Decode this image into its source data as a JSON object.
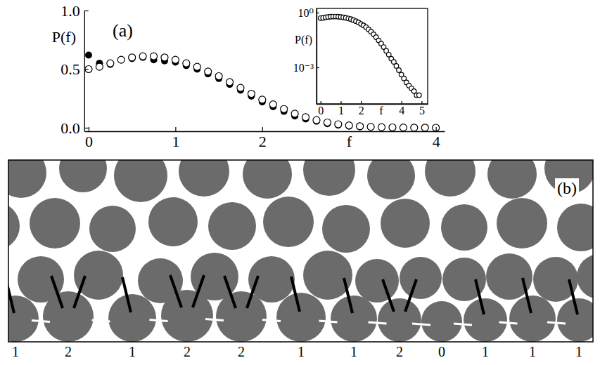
{
  "chart_data": [
    {
      "type": "scatter",
      "title": "(a)",
      "xlabel": "f",
      "ylabel": "P(f)",
      "x": [
        0,
        0.125,
        0.25,
        0.375,
        0.5,
        0.625,
        0.75,
        0.875,
        1,
        1.125,
        1.25,
        1.375,
        1.5,
        1.625,
        1.75,
        1.875,
        2,
        2.125,
        2.25,
        2.375,
        2.5,
        2.625,
        2.75,
        2.875,
        3,
        3.125,
        3.25,
        3.375,
        3.5,
        3.625,
        3.75,
        3.875,
        4
      ],
      "series": [
        {
          "marker": "filled-circle",
          "color": "#000000",
          "values": [
            0.62,
            0.55,
            0.54,
            0.58,
            0.59,
            0.6,
            0.58,
            0.57,
            0.56,
            0.53,
            0.5,
            0.46,
            0.42,
            0.37,
            0.32,
            0.27,
            0.22,
            0.18,
            0.14,
            0.1,
            0.075,
            0.055,
            0.035,
            0.022,
            0.013,
            0.008,
            0.005,
            0.003,
            0.002,
            0.001,
            0.001,
            0,
            0
          ]
        },
        {
          "marker": "open-circle",
          "color": "#000000",
          "values": [
            0.5,
            0.52,
            0.55,
            0.58,
            0.6,
            0.61,
            0.61,
            0.6,
            0.58,
            0.55,
            0.52,
            0.48,
            0.44,
            0.39,
            0.34,
            0.29,
            0.24,
            0.2,
            0.16,
            0.12,
            0.09,
            0.065,
            0.045,
            0.03,
            0.02,
            0.013,
            0.008,
            0.005,
            0.003,
            0.002,
            0.001,
            0.001,
            0
          ]
        }
      ],
      "xlim": [
        -0.05,
        4.1
      ],
      "ylim": [
        -0.03,
        1.0
      ],
      "xticks": [
        0,
        1,
        2,
        4
      ],
      "yticks": [
        {
          "value": 0,
          "label": "0.0"
        },
        {
          "value": 0.5,
          "label": "0.5"
        },
        {
          "value": 1,
          "label": "1.0"
        }
      ],
      "grid": false
    },
    {
      "type": "scatter",
      "xlabel": "f",
      "ylabel": "P(f)",
      "log": "y",
      "x": [
        0,
        0.125,
        0.25,
        0.375,
        0.5,
        0.625,
        0.75,
        0.875,
        1,
        1.125,
        1.25,
        1.375,
        1.5,
        1.625,
        1.75,
        1.875,
        2,
        2.125,
        2.25,
        2.375,
        2.5,
        2.625,
        2.75,
        2.875,
        3,
        3.125,
        3.25,
        3.375,
        3.5,
        3.625,
        3.75,
        3.875,
        4,
        4.125,
        4.25,
        4.375,
        4.5,
        4.625,
        4.75,
        4.875
      ],
      "series": [
        {
          "marker": "open-circle",
          "color": "#000000",
          "values": [
            0.5,
            0.52,
            0.55,
            0.58,
            0.6,
            0.61,
            0.61,
            0.6,
            0.58,
            0.55,
            0.52,
            0.48,
            0.44,
            0.39,
            0.34,
            0.29,
            0.24,
            0.2,
            0.16,
            0.12,
            0.09,
            0.065,
            0.045,
            0.03,
            0.02,
            0.013,
            0.008,
            0.005,
            0.003,
            0.002,
            0.0012,
            0.0007,
            0.0004,
            0.00025,
            0.00015,
            0.0001,
            7e-05,
            5e-05,
            3e-05,
            3e-05
          ]
        }
      ],
      "xlim": [
        -0.2,
        5.3
      ],
      "ylim": [
        1e-05,
        1.7
      ],
      "xticks": [
        0,
        1,
        2,
        4,
        5
      ],
      "yticks": [
        {
          "value": 0.001,
          "label": "10⁻³"
        },
        {
          "value": 1,
          "label": "10⁰"
        }
      ],
      "grid": false
    }
  ],
  "diagram": {
    "label": "(b)",
    "counts": [
      1,
      2,
      1,
      2,
      2,
      1,
      1,
      2,
      0,
      1,
      1,
      1
    ]
  }
}
